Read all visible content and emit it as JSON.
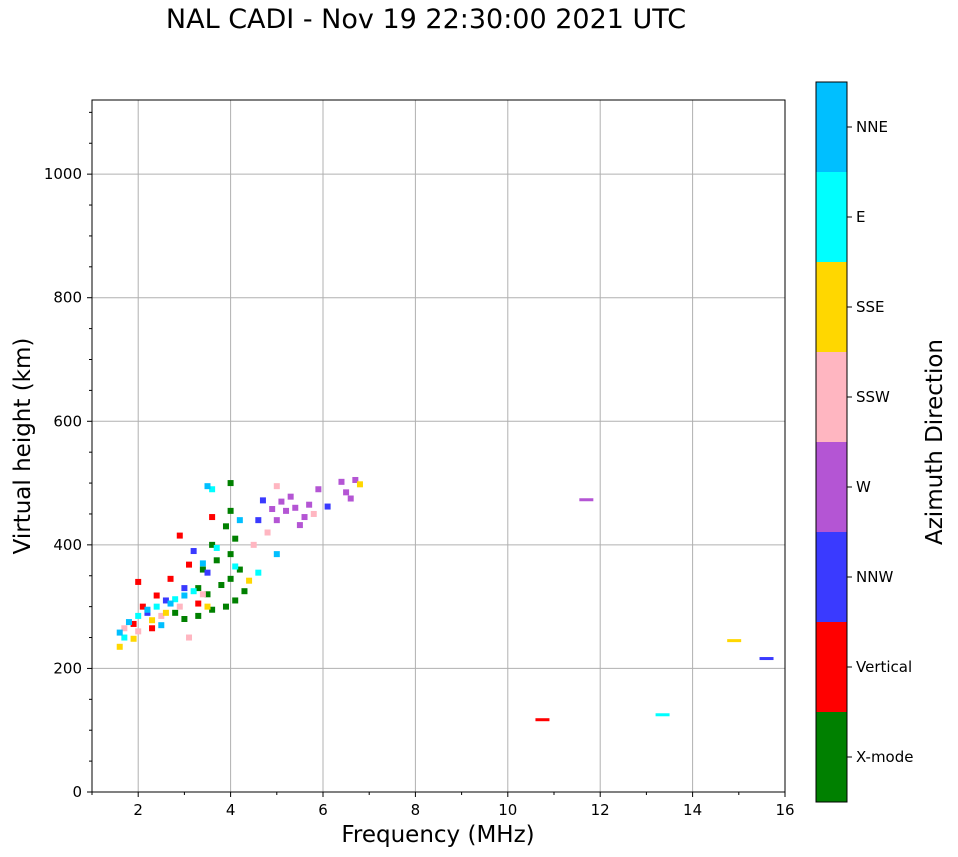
{
  "chart_data": {
    "type": "scatter",
    "title": "NAL CADI - Nov 19 22:30:00 2021 UTC",
    "xlabel": "Frequency (MHz)",
    "ylabel": "Virtual height (km)",
    "xlim": [
      1,
      16
    ],
    "ylim": [
      0,
      1120
    ],
    "xticks": [
      2,
      4,
      6,
      8,
      10,
      12,
      14,
      16
    ],
    "yticks": [
      0,
      200,
      400,
      600,
      800,
      1000
    ],
    "grid": true,
    "colorbar": {
      "label": "Azimuth Direction",
      "categories": [
        {
          "name": "X-mode",
          "color": "#008000"
        },
        {
          "name": "Vertical",
          "color": "#ff0000"
        },
        {
          "name": "NNW",
          "color": "#3a3aff"
        },
        {
          "name": "W",
          "color": "#b455d4"
        },
        {
          "name": "SSW",
          "color": "#ffb6c1"
        },
        {
          "name": "SSE",
          "color": "#ffd700"
        },
        {
          "name": "E",
          "color": "#00ffff"
        },
        {
          "name": "NNE",
          "color": "#00bfff"
        }
      ]
    },
    "points": [
      {
        "f": 3.3,
        "h": 285,
        "dir": "X-mode"
      },
      {
        "f": 3.6,
        "h": 295,
        "dir": "X-mode"
      },
      {
        "f": 3.9,
        "h": 300,
        "dir": "X-mode"
      },
      {
        "f": 4.1,
        "h": 310,
        "dir": "X-mode"
      },
      {
        "f": 3.5,
        "h": 320,
        "dir": "X-mode"
      },
      {
        "f": 3.8,
        "h": 335,
        "dir": "X-mode"
      },
      {
        "f": 4.0,
        "h": 345,
        "dir": "X-mode"
      },
      {
        "f": 4.2,
        "h": 360,
        "dir": "X-mode"
      },
      {
        "f": 3.7,
        "h": 375,
        "dir": "X-mode"
      },
      {
        "f": 4.0,
        "h": 385,
        "dir": "X-mode"
      },
      {
        "f": 3.6,
        "h": 400,
        "dir": "X-mode"
      },
      {
        "f": 4.1,
        "h": 410,
        "dir": "X-mode"
      },
      {
        "f": 3.9,
        "h": 430,
        "dir": "X-mode"
      },
      {
        "f": 4.0,
        "h": 455,
        "dir": "X-mode"
      },
      {
        "f": 3.0,
        "h": 280,
        "dir": "X-mode"
      },
      {
        "f": 2.8,
        "h": 290,
        "dir": "X-mode"
      },
      {
        "f": 3.4,
        "h": 360,
        "dir": "X-mode"
      },
      {
        "f": 4.0,
        "h": 500,
        "dir": "X-mode"
      },
      {
        "f": 3.3,
        "h": 330,
        "dir": "X-mode"
      },
      {
        "f": 4.3,
        "h": 325,
        "dir": "X-mode"
      },
      {
        "f": 1.9,
        "h": 272,
        "dir": "Vertical"
      },
      {
        "f": 2.1,
        "h": 300,
        "dir": "Vertical"
      },
      {
        "f": 2.4,
        "h": 318,
        "dir": "Vertical"
      },
      {
        "f": 2.7,
        "h": 345,
        "dir": "Vertical"
      },
      {
        "f": 3.1,
        "h": 368,
        "dir": "Vertical"
      },
      {
        "f": 2.9,
        "h": 415,
        "dir": "Vertical"
      },
      {
        "f": 3.6,
        "h": 445,
        "dir": "Vertical"
      },
      {
        "f": 3.3,
        "h": 305,
        "dir": "Vertical"
      },
      {
        "f": 2.3,
        "h": 265,
        "dir": "Vertical"
      },
      {
        "f": 2.0,
        "h": 340,
        "dir": "Vertical"
      },
      {
        "f": 10.75,
        "h": 117,
        "dir": "Vertical"
      },
      {
        "f": 2.2,
        "h": 290,
        "dir": "NNW"
      },
      {
        "f": 2.6,
        "h": 310,
        "dir": "NNW"
      },
      {
        "f": 3.0,
        "h": 330,
        "dir": "NNW"
      },
      {
        "f": 3.5,
        "h": 355,
        "dir": "NNW"
      },
      {
        "f": 4.6,
        "h": 440,
        "dir": "NNW"
      },
      {
        "f": 6.1,
        "h": 462,
        "dir": "NNW"
      },
      {
        "f": 4.7,
        "h": 472,
        "dir": "NNW"
      },
      {
        "f": 3.2,
        "h": 390,
        "dir": "NNW"
      },
      {
        "f": 15.6,
        "h": 216,
        "dir": "NNW"
      },
      {
        "f": 5.0,
        "h": 440,
        "dir": "W"
      },
      {
        "f": 5.2,
        "h": 455,
        "dir": "W"
      },
      {
        "f": 5.4,
        "h": 460,
        "dir": "W"
      },
      {
        "f": 5.6,
        "h": 445,
        "dir": "W"
      },
      {
        "f": 5.1,
        "h": 470,
        "dir": "W"
      },
      {
        "f": 5.3,
        "h": 478,
        "dir": "W"
      },
      {
        "f": 5.7,
        "h": 465,
        "dir": "W"
      },
      {
        "f": 4.9,
        "h": 458,
        "dir": "W"
      },
      {
        "f": 5.5,
        "h": 432,
        "dir": "W"
      },
      {
        "f": 6.5,
        "h": 485,
        "dir": "W"
      },
      {
        "f": 6.6,
        "h": 475,
        "dir": "W"
      },
      {
        "f": 6.4,
        "h": 502,
        "dir": "W"
      },
      {
        "f": 6.7,
        "h": 505,
        "dir": "W"
      },
      {
        "f": 5.9,
        "h": 490,
        "dir": "W"
      },
      {
        "f": 11.7,
        "h": 473,
        "dir": "W"
      },
      {
        "f": 1.7,
        "h": 265,
        "dir": "SSW"
      },
      {
        "f": 2.0,
        "h": 260,
        "dir": "SSW"
      },
      {
        "f": 2.5,
        "h": 285,
        "dir": "SSW"
      },
      {
        "f": 2.9,
        "h": 300,
        "dir": "SSW"
      },
      {
        "f": 3.4,
        "h": 320,
        "dir": "SSW"
      },
      {
        "f": 4.5,
        "h": 400,
        "dir": "SSW"
      },
      {
        "f": 4.8,
        "h": 420,
        "dir": "SSW"
      },
      {
        "f": 5.8,
        "h": 450,
        "dir": "SSW"
      },
      {
        "f": 5.0,
        "h": 495,
        "dir": "SSW"
      },
      {
        "f": 3.1,
        "h": 250,
        "dir": "SSW"
      },
      {
        "f": 1.6,
        "h": 235,
        "dir": "SSE"
      },
      {
        "f": 1.9,
        "h": 248,
        "dir": "SSE"
      },
      {
        "f": 2.3,
        "h": 278,
        "dir": "SSE"
      },
      {
        "f": 2.6,
        "h": 290,
        "dir": "SSE"
      },
      {
        "f": 3.5,
        "h": 300,
        "dir": "SSE"
      },
      {
        "f": 4.4,
        "h": 342,
        "dir": "SSE"
      },
      {
        "f": 6.8,
        "h": 498,
        "dir": "SSE"
      },
      {
        "f": 14.9,
        "h": 245,
        "dir": "SSE"
      },
      {
        "f": 1.7,
        "h": 250,
        "dir": "E"
      },
      {
        "f": 2.0,
        "h": 285,
        "dir": "E"
      },
      {
        "f": 2.4,
        "h": 300,
        "dir": "E"
      },
      {
        "f": 2.8,
        "h": 312,
        "dir": "E"
      },
      {
        "f": 3.2,
        "h": 325,
        "dir": "E"
      },
      {
        "f": 3.7,
        "h": 395,
        "dir": "E"
      },
      {
        "f": 4.1,
        "h": 365,
        "dir": "E"
      },
      {
        "f": 4.6,
        "h": 355,
        "dir": "E"
      },
      {
        "f": 3.6,
        "h": 490,
        "dir": "E"
      },
      {
        "f": 13.35,
        "h": 125,
        "dir": "E"
      },
      {
        "f": 1.8,
        "h": 275,
        "dir": "NNE"
      },
      {
        "f": 2.2,
        "h": 295,
        "dir": "NNE"
      },
      {
        "f": 2.7,
        "h": 305,
        "dir": "NNE"
      },
      {
        "f": 3.0,
        "h": 318,
        "dir": "NNE"
      },
      {
        "f": 3.4,
        "h": 370,
        "dir": "NNE"
      },
      {
        "f": 3.5,
        "h": 495,
        "dir": "NNE"
      },
      {
        "f": 5.0,
        "h": 385,
        "dir": "NNE"
      },
      {
        "f": 2.5,
        "h": 270,
        "dir": "NNE"
      },
      {
        "f": 4.2,
        "h": 440,
        "dir": "NNE"
      },
      {
        "f": 1.6,
        "h": 258,
        "dir": "NNE"
      }
    ]
  }
}
